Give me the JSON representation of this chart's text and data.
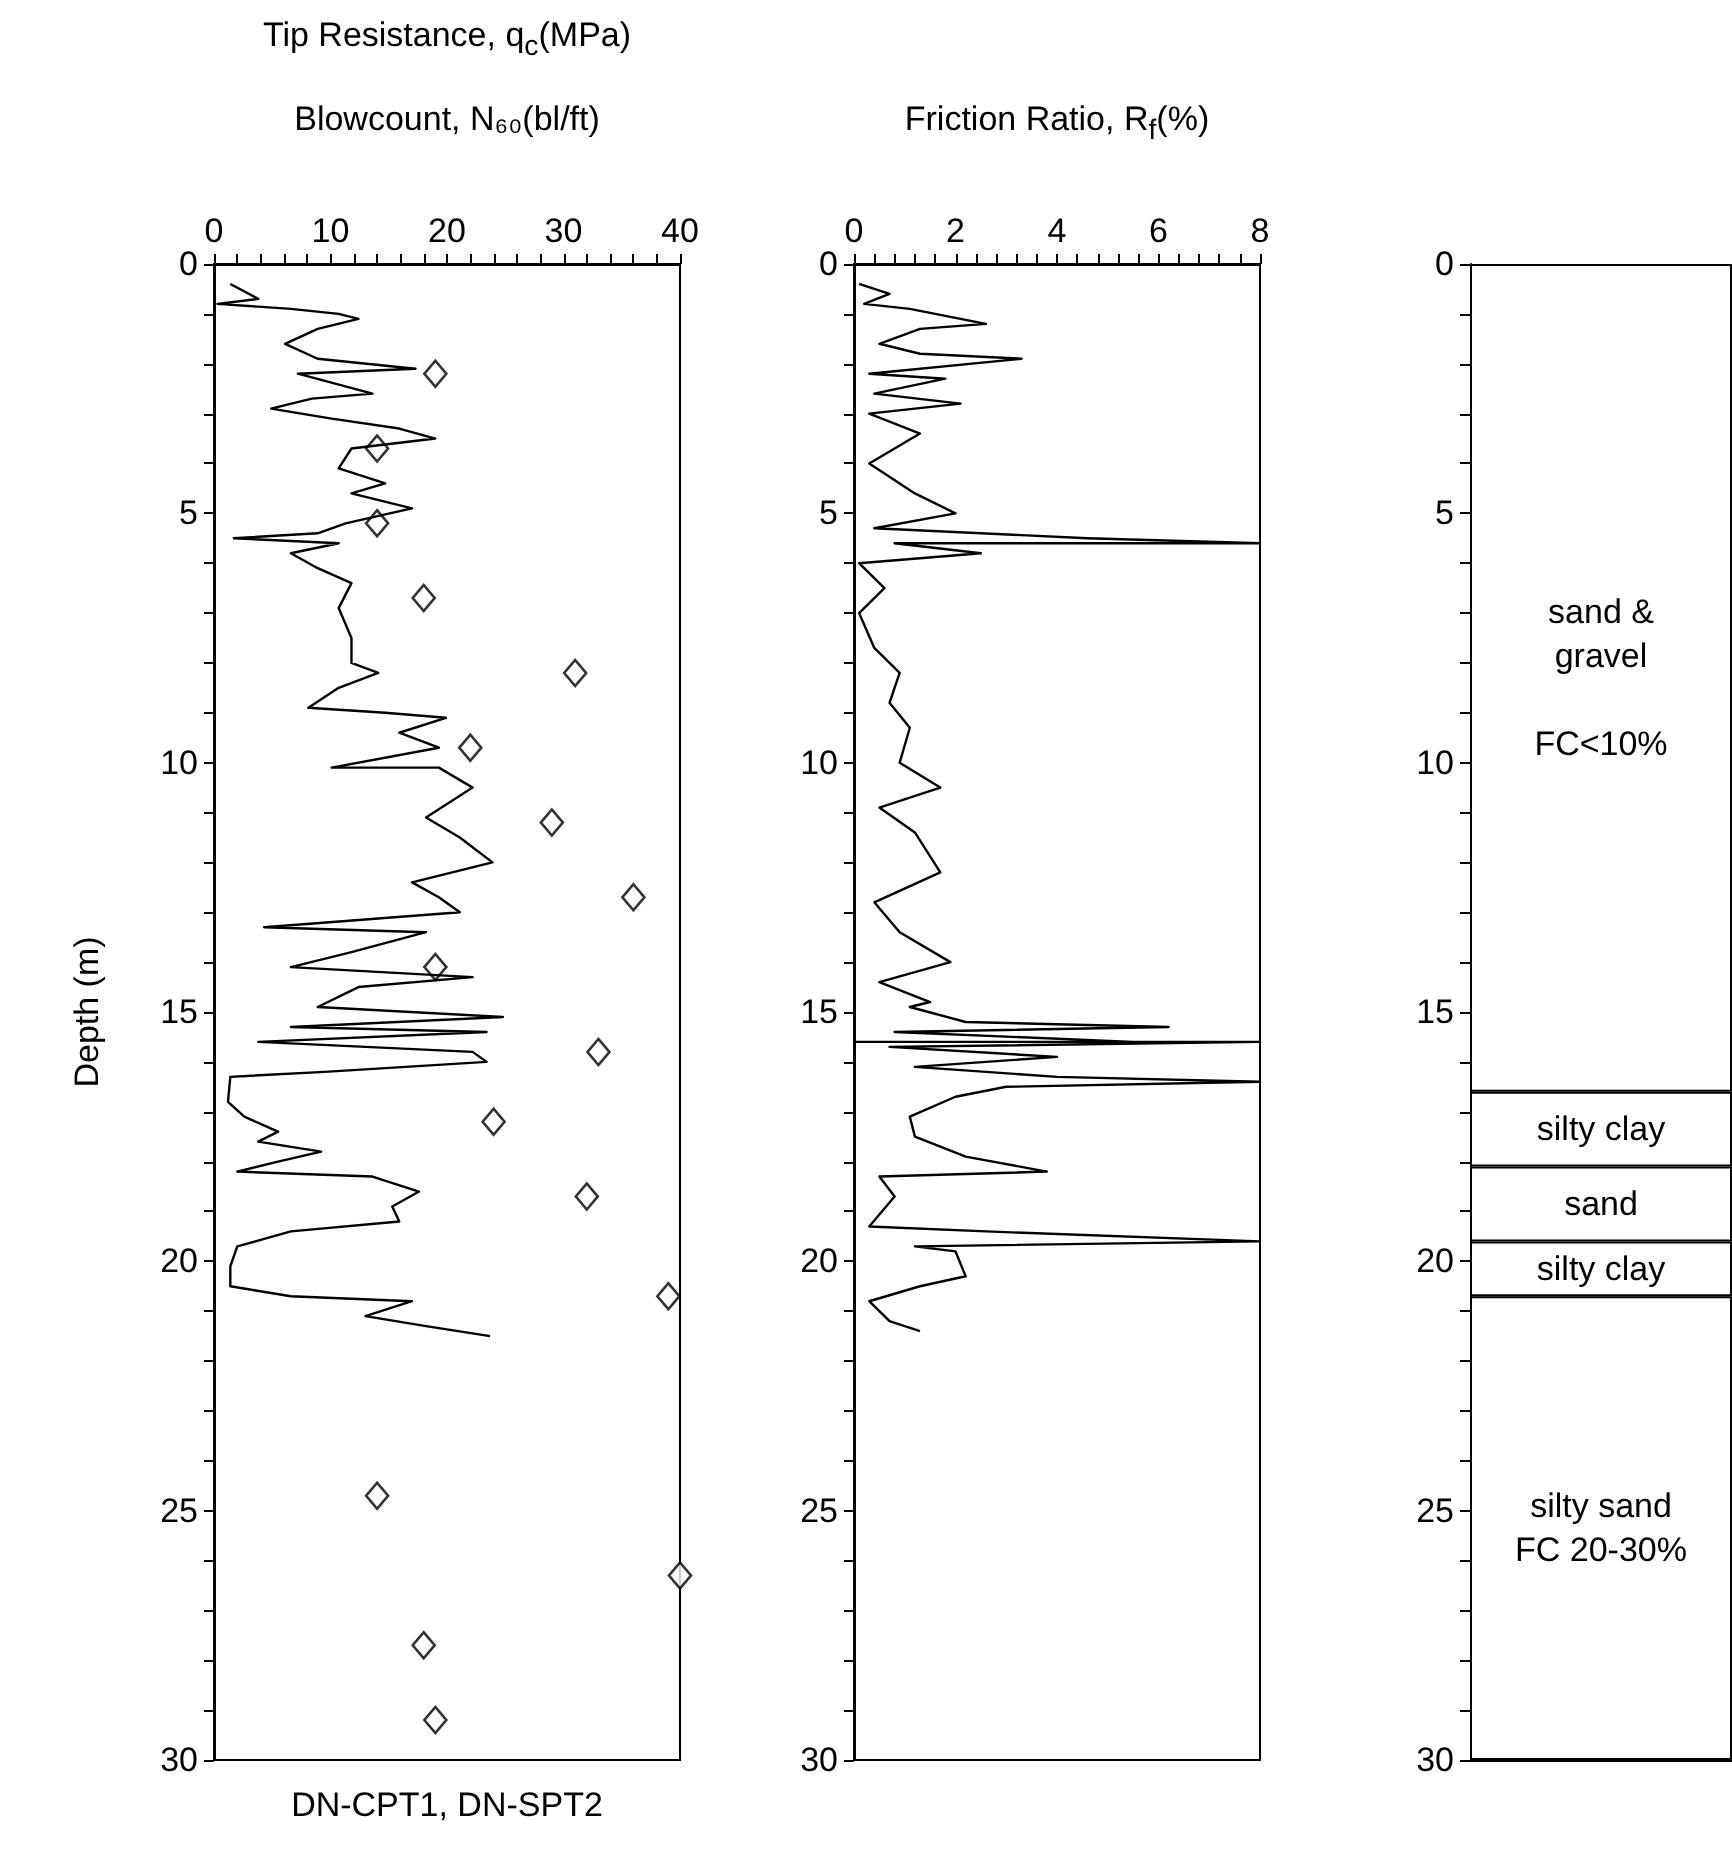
{
  "chart_data": [
    {
      "type": "line",
      "title": "Tip Resistance, q$_{c}$(MPa)",
      "xlabel": "Blowcount, N₆₀(bl/ft)",
      "ylabel": "Depth (m)",
      "annotations": [
        "DN-CPT1, DN-SPT2"
      ],
      "xlim": [
        0,
        40
      ],
      "ylim": [
        30,
        0
      ],
      "xticks": [
        0,
        {
          "value": 2,
          "label": null
        },
        {
          "value": 4,
          "label": null
        },
        {
          "value": 6,
          "label": null
        },
        {
          "value": 8,
          "label": null
        },
        10,
        {
          "value": 12,
          "label": null
        },
        {
          "value": 14,
          "label": null
        },
        {
          "value": 16,
          "label": null
        },
        {
          "value": 18,
          "label": null
        },
        20,
        {
          "value": 22,
          "label": null
        },
        {
          "value": 24,
          "label": null
        },
        {
          "value": 26,
          "label": null
        },
        {
          "value": 28,
          "label": null
        },
        30,
        {
          "value": 32,
          "label": null
        },
        {
          "value": 34,
          "label": null
        },
        {
          "value": 36,
          "label": null
        },
        {
          "value": 38,
          "label": null
        },
        40
      ],
      "yticks": [
        0,
        {
          "value": 1,
          "label": null
        },
        {
          "value": 2,
          "label": null
        },
        {
          "value": 3,
          "label": null
        },
        {
          "value": 4,
          "label": null
        },
        5,
        {
          "value": 6,
          "label": null
        },
        {
          "value": 7,
          "label": null
        },
        {
          "value": 8,
          "label": null
        },
        {
          "value": 9,
          "label": null
        },
        10,
        {
          "value": 11,
          "label": null
        },
        {
          "value": 12,
          "label": null
        },
        {
          "value": 13,
          "label": null
        },
        {
          "value": 14,
          "label": null
        },
        15,
        {
          "value": 16,
          "label": null
        },
        {
          "value": 17,
          "label": null
        },
        {
          "value": 18,
          "label": null
        },
        {
          "value": 19,
          "label": null
        },
        20,
        {
          "value": 21,
          "label": null
        },
        {
          "value": 22,
          "label": null
        },
        {
          "value": 23,
          "label": null
        },
        {
          "value": 24,
          "label": null
        },
        25,
        {
          "value": 26,
          "label": null
        },
        {
          "value": 27,
          "label": null
        },
        {
          "value": 28,
          "label": null
        },
        {
          "value": 29,
          "label": null
        },
        30
      ],
      "series": [
        {
          "type": "line",
          "color": "#000000",
          "x": [
            1.4,
            3.8,
            0.3,
            6.6,
            10.7,
            12.4,
            8.9,
            6.1,
            8.9,
            17.3,
            7.2,
            13.6,
            8.4,
            4.9,
            10.1,
            15.9,
            19.0,
            11.8,
            10.7,
            14.7,
            11.8,
            17.0,
            11.3,
            8.9,
            1.7,
            10.7,
            6.6,
            8.9,
            11.8,
            10.7,
            11.8,
            11.8,
            14.1,
            10.7,
            8.1,
            14.7,
            19.9,
            15.9,
            19.3,
            10.1,
            19.3,
            22.2,
            18.2,
            21.1,
            23.9,
            17.0,
            19.3,
            21.1,
            4.3,
            18.2,
            11.8,
            6.6,
            22.2,
            12.4,
            8.9,
            24.8,
            6.6,
            23.4,
            3.8,
            22.2,
            23.4,
            9.5,
            1.4,
            1.2,
            2.6,
            5.5,
            3.8,
            9.2,
            5.5,
            2.0,
            13.6,
            17.6,
            15.3,
            15.9,
            6.6,
            2.0,
            1.4,
            1.4,
            6.6,
            17.0,
            13.0,
            18.2,
            23.7
          ],
          "values": [
            0.4,
            0.7,
            0.8,
            0.9,
            1.0,
            1.1,
            1.3,
            1.6,
            1.9,
            2.1,
            2.2,
            2.6,
            2.7,
            2.9,
            3.1,
            3.3,
            3.5,
            3.7,
            4.1,
            4.4,
            4.6,
            4.9,
            5.2,
            5.4,
            5.5,
            5.6,
            5.8,
            6.1,
            6.4,
            6.9,
            7.5,
            8.0,
            8.2,
            8.5,
            8.9,
            9.0,
            9.1,
            9.4,
            9.7,
            10.1,
            10.1,
            10.5,
            11.1,
            11.5,
            12.0,
            12.4,
            12.7,
            13.0,
            13.3,
            13.4,
            13.8,
            14.1,
            14.3,
            14.5,
            14.9,
            15.1,
            15.3,
            15.4,
            15.6,
            15.8,
            16.0,
            16.2,
            16.3,
            16.8,
            17.1,
            17.4,
            17.6,
            17.8,
            18.0,
            18.2,
            18.3,
            18.6,
            18.9,
            19.2,
            19.4,
            19.7,
            20.1,
            20.5,
            20.7,
            20.8,
            21.1,
            21.3,
            21.5
          ]
        },
        {
          "type": "scatter",
          "marker": "diamond",
          "color": "#000000",
          "x": [
            19,
            14,
            14,
            18,
            31,
            22,
            29,
            36,
            19,
            33,
            24,
            32,
            39,
            14,
            40,
            18,
            19
          ],
          "values": [
            2.2,
            3.7,
            5.2,
            6.7,
            8.2,
            9.7,
            11.2,
            12.7,
            14.1,
            15.8,
            17.2,
            18.7,
            20.7,
            24.7,
            26.3,
            27.7,
            29.2
          ]
        }
      ]
    },
    {
      "type": "line",
      "xlabel": "Friction Ratio, R$_{f}$(%)",
      "xlim": [
        0,
        8
      ],
      "ylim": [
        30,
        0
      ],
      "xticks": [
        0,
        {
          "value": 0.4,
          "label": null
        },
        {
          "value": 0.8,
          "label": null
        },
        {
          "value": 1.2,
          "label": null
        },
        {
          "value": 1.6,
          "label": null
        },
        2,
        {
          "value": 2.4,
          "label": null
        },
        {
          "value": 2.8,
          "label": null
        },
        {
          "value": 3.2,
          "label": null
        },
        {
          "value": 3.6,
          "label": null
        },
        4,
        {
          "value": 4.4,
          "label": null
        },
        {
          "value": 4.8,
          "label": null
        },
        {
          "value": 5.2,
          "label": null
        },
        {
          "value": 5.6,
          "label": null
        },
        6,
        {
          "value": 6.4,
          "label": null
        },
        {
          "value": 6.8,
          "label": null
        },
        {
          "value": 7.2,
          "label": null
        },
        {
          "value": 7.6,
          "label": null
        },
        8
      ],
      "yticks": [
        0,
        {
          "value": 1,
          "label": null
        },
        {
          "value": 2,
          "label": null
        },
        {
          "value": 3,
          "label": null
        },
        {
          "value": 4,
          "label": null
        },
        5,
        {
          "value": 6,
          "label": null
        },
        {
          "value": 7,
          "label": null
        },
        {
          "value": 8,
          "label": null
        },
        {
          "value": 9,
          "label": null
        },
        10,
        {
          "value": 11,
          "label": null
        },
        {
          "value": 12,
          "label": null
        },
        {
          "value": 13,
          "label": null
        },
        {
          "value": 14,
          "label": null
        },
        15,
        {
          "value": 16,
          "label": null
        },
        {
          "value": 17,
          "label": null
        },
        {
          "value": 18,
          "label": null
        },
        {
          "value": 19,
          "label": null
        },
        20,
        {
          "value": 21,
          "label": null
        },
        {
          "value": 22,
          "label": null
        },
        {
          "value": 23,
          "label": null
        },
        {
          "value": 24,
          "label": null
        },
        25,
        {
          "value": 26,
          "label": null
        },
        {
          "value": 27,
          "label": null
        },
        {
          "value": 28,
          "label": null
        },
        {
          "value": 29,
          "label": null
        },
        30
      ],
      "series": [
        {
          "type": "line",
          "color": "#000000",
          "x": [
            0.1,
            0.7,
            0.2,
            1.1,
            2.6,
            1.3,
            0.5,
            1.3,
            3.3,
            0.3,
            1.8,
            0.4,
            2.1,
            0.3,
            1.3,
            0.3,
            1.2,
            2.0,
            0.4,
            4.6,
            8,
            0.8,
            2.5,
            0.1,
            0.6,
            0.1,
            0.4,
            0.9,
            0.7,
            1.1,
            0.9,
            1.7,
            0.5,
            1.2,
            1.7,
            0.4,
            0.9,
            1.9,
            0.5,
            1.5,
            1.1,
            2.2,
            6.2,
            0.8,
            5.5,
            0.0,
            8,
            0.7,
            4.0,
            1.2,
            4.0,
            8,
            3.0,
            2.0,
            1.1,
            1.2,
            2.2,
            3.8,
            0.5,
            0.8,
            0.3,
            2.6,
            8,
            1.2,
            2.0,
            2.2,
            1.3,
            0.3,
            0.7,
            1.3
          ],
          "values": [
            0.4,
            0.6,
            0.8,
            0.9,
            1.2,
            1.3,
            1.6,
            1.8,
            1.9,
            2.2,
            2.3,
            2.6,
            2.8,
            3.0,
            3.4,
            4.0,
            4.6,
            5.0,
            5.3,
            5.5,
            5.6,
            5.6,
            5.8,
            6.0,
            6.5,
            7.0,
            7.7,
            8.2,
            8.8,
            9.3,
            10.0,
            10.5,
            10.9,
            11.4,
            12.2,
            12.8,
            13.4,
            14.0,
            14.4,
            14.8,
            14.9,
            15.2,
            15.3,
            15.4,
            15.6,
            15.6,
            15.6,
            15.7,
            15.9,
            16.1,
            16.3,
            16.4,
            16.5,
            16.7,
            17.1,
            17.5,
            17.9,
            18.2,
            18.3,
            18.7,
            19.3,
            19.4,
            19.6,
            19.7,
            19.8,
            20.3,
            20.5,
            20.8,
            21.2,
            21.4
          ]
        }
      ]
    },
    {
      "type": "bar",
      "stacked": true,
      "categories": [
        null
      ],
      "ylim": [
        30,
        0
      ],
      "tick_labels": "y",
      "yticks": [
        0,
        {
          "value": 1,
          "label": null
        },
        {
          "value": 2,
          "label": null
        },
        {
          "value": 3,
          "label": null
        },
        {
          "value": 4,
          "label": null
        },
        5,
        {
          "value": 6,
          "label": null
        },
        {
          "value": 7,
          "label": null
        },
        {
          "value": 8,
          "label": null
        },
        {
          "value": 9,
          "label": null
        },
        10,
        {
          "value": 11,
          "label": null
        },
        {
          "value": 12,
          "label": null
        },
        {
          "value": 13,
          "label": null
        },
        {
          "value": 14,
          "label": null
        },
        15,
        {
          "value": 16,
          "label": null
        },
        {
          "value": 17,
          "label": null
        },
        {
          "value": 18,
          "label": null
        },
        {
          "value": 19,
          "label": null
        },
        20,
        {
          "value": 21,
          "label": null
        },
        {
          "value": 22,
          "label": null
        },
        {
          "value": 23,
          "label": null
        },
        {
          "value": 24,
          "label": null
        },
        25,
        {
          "value": 26,
          "label": null
        },
        {
          "value": 27,
          "label": null
        },
        {
          "value": 28,
          "label": null
        },
        {
          "value": 29,
          "label": null
        },
        30
      ],
      "series": [
        {
          "name": "sand &\ngravel\n\nFC<10%",
          "color": "#ffffff",
          "values": [
            16.6
          ]
        },
        {
          "name": "silty clay",
          "color": "#ffffff",
          "values": [
            1.5
          ]
        },
        {
          "name": "sand",
          "color": "#ffffff",
          "values": [
            1.5
          ]
        },
        {
          "name": "silty clay",
          "color": "#ffffff",
          "values": [
            1.1
          ]
        },
        {
          "name": "silty sand\nFC 20-30%",
          "color": "#ffffff",
          "values": [
            9.3
          ]
        }
      ]
    }
  ]
}
